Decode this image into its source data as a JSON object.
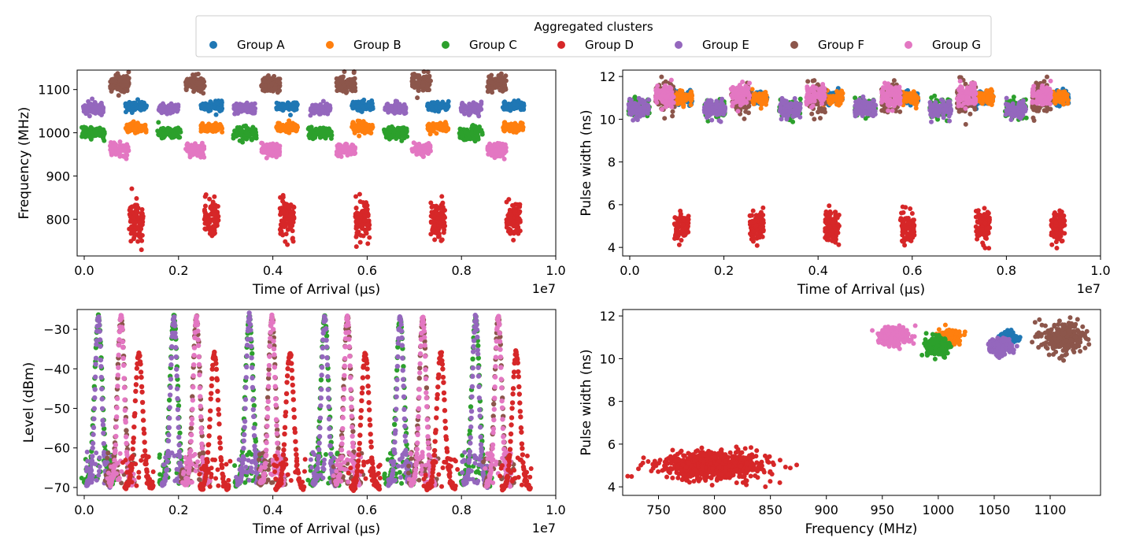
{
  "legend": {
    "title": "Aggregated clusters",
    "entries": [
      {
        "name": "Group A",
        "color": "#1f77b4"
      },
      {
        "name": "Group B",
        "color": "#ff7f0e"
      },
      {
        "name": "Group C",
        "color": "#2ca02c"
      },
      {
        "name": "Group D",
        "color": "#d62728"
      },
      {
        "name": "Group E",
        "color": "#9467bd"
      },
      {
        "name": "Group F",
        "color": "#8c564b"
      },
      {
        "name": "Group G",
        "color": "#e377c2"
      }
    ]
  },
  "chart_data": [
    {
      "id": "toa-frequency",
      "type": "scatter",
      "xlabel": "Time of Arrival (µs)",
      "ylabel": "Frequency (MHz)",
      "x_offset_label": "1e7",
      "xlim": [
        -0.015,
        1.0
      ],
      "ylim": [
        715,
        1145
      ],
      "xticks": [
        0.0,
        0.2,
        0.4,
        0.6,
        0.8,
        1.0
      ],
      "xtick_labels": [
        "0.0",
        "0.2",
        "0.4",
        "0.6",
        "0.8",
        "1.0"
      ],
      "yticks": [
        800,
        900,
        1000,
        1100
      ],
      "ytick_labels": [
        "800",
        "900",
        "1000",
        "1100"
      ],
      "x_unit_scale": "1e7",
      "series": [
        {
          "name": "Group A",
          "color": "#1f77b4",
          "cluster_x": [
            0.06,
            0.22,
            0.38,
            0.54,
            0.7,
            0.86
          ],
          "x_spread": 0.045,
          "x_offset": 0.05,
          "y_center": 1062,
          "y_spread": 5
        },
        {
          "name": "Group B",
          "color": "#ff7f0e",
          "cluster_x": [
            0.06,
            0.22,
            0.38,
            0.54,
            0.7,
            0.86
          ],
          "x_spread": 0.045,
          "x_offset": 0.05,
          "y_center": 1012,
          "y_spread": 5
        },
        {
          "name": "Group C",
          "color": "#2ca02c",
          "cluster_x": [
            0.02,
            0.18,
            0.34,
            0.5,
            0.66,
            0.82
          ],
          "x_spread": 0.05,
          "x_offset": 0.0,
          "y_center": 1000,
          "y_spread": 7
        },
        {
          "name": "Group D",
          "color": "#d62728",
          "cluster_x": [
            0.11,
            0.27,
            0.43,
            0.59,
            0.75,
            0.91
          ],
          "x_spread": 0.03,
          "x_offset": 0.0,
          "y_center": 800,
          "y_spread": 22
        },
        {
          "name": "Group E",
          "color": "#9467bd",
          "cluster_x": [
            0.02,
            0.18,
            0.34,
            0.5,
            0.66,
            0.82
          ],
          "x_spread": 0.045,
          "x_offset": 0.0,
          "y_center": 1056,
          "y_spread": 6
        },
        {
          "name": "Group F",
          "color": "#8c564b",
          "cluster_x": [
            0.07,
            0.23,
            0.39,
            0.55,
            0.71,
            0.87
          ],
          "x_spread": 0.04,
          "x_offset": 0.005,
          "y_center": 1113,
          "y_spread": 10
        },
        {
          "name": "Group G",
          "color": "#e377c2",
          "cluster_x": [
            0.07,
            0.23,
            0.39,
            0.55,
            0.71,
            0.87
          ],
          "x_spread": 0.04,
          "x_offset": 0.005,
          "y_center": 961,
          "y_spread": 7
        }
      ]
    },
    {
      "id": "toa-pulsewidth",
      "type": "scatter",
      "xlabel": "Time of Arrival (µs)",
      "ylabel": "Pulse width (ns)",
      "x_offset_label": "1e7",
      "xlim": [
        -0.015,
        1.0
      ],
      "ylim": [
        3.6,
        12.3
      ],
      "xticks": [
        0.0,
        0.2,
        0.4,
        0.6,
        0.8,
        1.0
      ],
      "xtick_labels": [
        "0.0",
        "0.2",
        "0.4",
        "0.6",
        "0.8",
        "1.0"
      ],
      "yticks": [
        4,
        6,
        8,
        10,
        12
      ],
      "ytick_labels": [
        "4",
        "6",
        "8",
        "10",
        "12"
      ],
      "series": [
        {
          "name": "Group A",
          "color": "#1f77b4",
          "cluster_x": [
            0.06,
            0.22,
            0.38,
            0.54,
            0.7,
            0.86
          ],
          "x_spread": 0.045,
          "x_offset": 0.05,
          "y_center": 11.0,
          "y_spread": 0.15
        },
        {
          "name": "Group B",
          "color": "#ff7f0e",
          "cluster_x": [
            0.06,
            0.22,
            0.38,
            0.54,
            0.7,
            0.86
          ],
          "x_spread": 0.045,
          "x_offset": 0.05,
          "y_center": 11.0,
          "y_spread": 0.15
        },
        {
          "name": "Group C",
          "color": "#2ca02c",
          "cluster_x": [
            0.02,
            0.18,
            0.34,
            0.5,
            0.66,
            0.82
          ],
          "x_spread": 0.045,
          "x_offset": 0.0,
          "y_center": 10.5,
          "y_spread": 0.2
        },
        {
          "name": "Group D",
          "color": "#d62728",
          "cluster_x": [
            0.11,
            0.27,
            0.43,
            0.59,
            0.75,
            0.91
          ],
          "x_spread": 0.03,
          "x_offset": 0.0,
          "y_center": 5.0,
          "y_spread": 0.35
        },
        {
          "name": "Group E",
          "color": "#9467bd",
          "cluster_x": [
            0.02,
            0.18,
            0.34,
            0.5,
            0.66,
            0.82
          ],
          "x_spread": 0.045,
          "x_offset": 0.0,
          "y_center": 10.5,
          "y_spread": 0.2
        },
        {
          "name": "Group F",
          "color": "#8c564b",
          "cluster_x": [
            0.07,
            0.23,
            0.39,
            0.55,
            0.71,
            0.87
          ],
          "x_spread": 0.04,
          "x_offset": 0.005,
          "y_center": 11.0,
          "y_spread": 0.35
        },
        {
          "name": "Group G",
          "color": "#e377c2",
          "cluster_x": [
            0.07,
            0.23,
            0.39,
            0.55,
            0.71,
            0.87
          ],
          "x_spread": 0.04,
          "x_offset": 0.005,
          "y_center": 11.1,
          "y_spread": 0.25
        }
      ]
    },
    {
      "id": "toa-level",
      "type": "scatter",
      "xlabel": "Time of Arrival (µs)",
      "ylabel": "Level (dBm)",
      "x_offset_label": "1e7",
      "xlim": [
        -0.015,
        1.0
      ],
      "ylim": [
        -72,
        -25
      ],
      "xticks": [
        0.0,
        0.2,
        0.4,
        0.6,
        0.8,
        1.0
      ],
      "xtick_labels": [
        "0.0",
        "0.2",
        "0.4",
        "0.6",
        "0.8",
        "1.0"
      ],
      "yticks": [
        -70,
        -60,
        -50,
        -40,
        -30
      ],
      "ytick_labels": [
        "−70",
        "−60",
        "−50",
        "−40",
        "−30"
      ],
      "series": [
        {
          "name": "Group C",
          "color": "#2ca02c",
          "peak_x": [
            0.03,
            0.19,
            0.35,
            0.51,
            0.67,
            0.83
          ],
          "peak_level": -27,
          "floor_level": -69,
          "half_width": 0.03
        },
        {
          "name": "Group E",
          "color": "#9467bd",
          "peak_x": [
            0.03,
            0.19,
            0.35,
            0.51,
            0.67,
            0.83
          ],
          "peak_level": -27,
          "floor_level": -69,
          "half_width": 0.025
        },
        {
          "name": "Group F",
          "color": "#8c564b",
          "peak_x": [
            0.078,
            0.238,
            0.398,
            0.558,
            0.718,
            0.878
          ],
          "peak_level": -27,
          "floor_level": -69,
          "half_width": 0.028
        },
        {
          "name": "Group G",
          "color": "#e377c2",
          "peak_x": [
            0.078,
            0.238,
            0.398,
            0.558,
            0.718,
            0.878
          ],
          "peak_level": -27,
          "floor_level": -69,
          "half_width": 0.025
        },
        {
          "name": "Group D",
          "color": "#d62728",
          "peak_x": [
            0.116,
            0.276,
            0.436,
            0.596,
            0.756,
            0.916
          ],
          "peak_level": -36,
          "floor_level": -70,
          "half_width": 0.03
        }
      ]
    },
    {
      "id": "frequency-pulsewidth",
      "type": "scatter",
      "xlabel": "Frequency (MHz)",
      "ylabel": "Pulse width (ns)",
      "xlim": [
        718,
        1145
      ],
      "ylim": [
        3.6,
        12.3
      ],
      "xticks": [
        750,
        800,
        850,
        900,
        950,
        1000,
        1050,
        1100
      ],
      "xtick_labels": [
        "750",
        "800",
        "850",
        "900",
        "950",
        "1000",
        "1050",
        "1100"
      ],
      "yticks": [
        4,
        6,
        8,
        10,
        12
      ],
      "ytick_labels": [
        "4",
        "6",
        "8",
        "10",
        "12"
      ],
      "series": [
        {
          "name": "Group D",
          "color": "#d62728",
          "x_center": 800,
          "x_spread": 24,
          "y_center": 5.0,
          "y_spread": 0.32
        },
        {
          "name": "Group G",
          "color": "#e377c2",
          "x_center": 960,
          "x_spread": 7,
          "y_center": 11.05,
          "y_spread": 0.2
        },
        {
          "name": "Group B",
          "color": "#ff7f0e",
          "x_center": 1011,
          "x_spread": 4,
          "y_center": 11.0,
          "y_spread": 0.15
        },
        {
          "name": "Group C",
          "color": "#2ca02c",
          "x_center": 1000,
          "x_spread": 5,
          "y_center": 10.55,
          "y_spread": 0.2
        },
        {
          "name": "Group A",
          "color": "#1f77b4",
          "x_center": 1062,
          "x_spread": 4,
          "y_center": 10.95,
          "y_spread": 0.12
        },
        {
          "name": "Group E",
          "color": "#9467bd",
          "x_center": 1056,
          "x_spread": 5,
          "y_center": 10.55,
          "y_spread": 0.18
        },
        {
          "name": "Group F",
          "color": "#8c564b",
          "x_center": 1112,
          "x_spread": 9,
          "y_center": 11.0,
          "y_spread": 0.35
        }
      ]
    }
  ]
}
